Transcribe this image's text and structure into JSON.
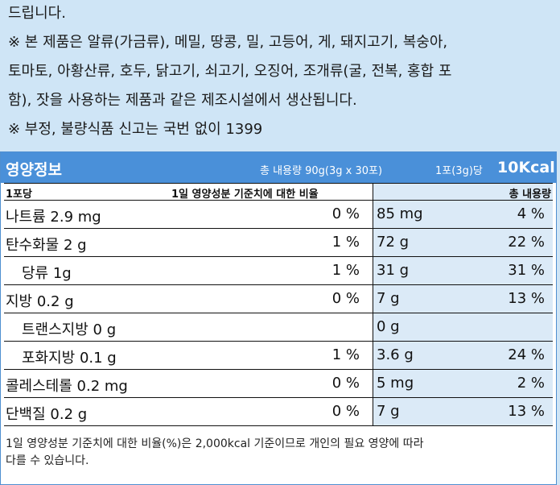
{
  "notice": {
    "lines": [
      "드립니다.",
      "※ 본 제품은 알류(가금류), 메밀, 땅콩, 밀, 고등어, 게, 돼지고기, 복숭아,",
      "토마토, 아황산류, 호두, 닭고기, 쇠고기, 오징어, 조개류(굴, 전복, 홍합 포",
      "함), 잣을 사용하는 제품과 같은 제조시설에서 생산됩니다.",
      "※ 부정, 불량식품 신고는 국번 없이 1399"
    ]
  },
  "nutrition": {
    "title": "영양정보",
    "total_content": "총 내용량 90g(3g x 30포)",
    "per_serving": "1포(3g)당",
    "kcal": "10Kcal",
    "header": {
      "serving": "1포당",
      "dv_per_serving": "1일 영양성분 기준치에 대한 비율",
      "total": "총 내용량"
    },
    "rows": [
      {
        "name": "나트륨 2.9 mg",
        "pct": "0 %",
        "total_amount": "85 mg",
        "total_pct": "4 %"
      },
      {
        "name": "탄수화물 2 g",
        "pct": "1 %",
        "total_amount": "72 g",
        "total_pct": "22 %"
      },
      {
        "name": "당류 1g",
        "pct": "1 %",
        "total_amount": "31 g",
        "total_pct": "31 %"
      },
      {
        "name": "지방 0.2 g",
        "pct": "0 %",
        "total_amount": "7 g",
        "total_pct": "13 %"
      },
      {
        "name": "트랜스지방 0 g",
        "pct": "",
        "total_amount": "0 g",
        "total_pct": ""
      },
      {
        "name": "포화지방 0.1 g",
        "pct": "1 %",
        "total_amount": "3.6 g",
        "total_pct": "24 %"
      },
      {
        "name": "콜레스테롤 0.2 mg",
        "pct": "0 %",
        "total_amount": "5 mg",
        "total_pct": "2 %"
      },
      {
        "name": "단백질 0.2 g",
        "pct": "0 %",
        "total_amount": "7 g",
        "total_pct": "13 %"
      }
    ],
    "footnote_lines": [
      "1일 영양성분 기준치에 대한 비율(%)은 2,000kcal 기준이므로 개인의 필요 영양에 따라",
      "다를 수 있습니다."
    ]
  }
}
